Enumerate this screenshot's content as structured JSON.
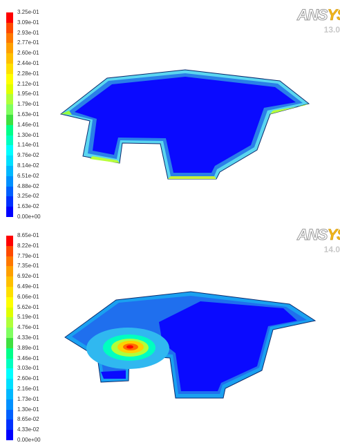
{
  "plots": [
    {
      "legend_labels": [
        "3.25e-01",
        "3.09e-01",
        "2.93e-01",
        "2.77e-01",
        "2.60e-01",
        "2.44e-01",
        "2.28e-01",
        "2.12e-01",
        "1.95e-01",
        "1.79e-01",
        "1.63e-01",
        "1.46e-01",
        "1.30e-01",
        "1.14e-01",
        "9.76e-02",
        "8.14e-02",
        "6.51e-02",
        "4.88e-02",
        "3.25e-02",
        "1.63e-02",
        "0.00e+00"
      ],
      "logo": {
        "brand_left": "ANS",
        "brand_right": "YS",
        "version": "13.0"
      }
    },
    {
      "legend_labels": [
        "8.65e-01",
        "8.22e-01",
        "7.79e-01",
        "7.35e-01",
        "6.92e-01",
        "6.49e-01",
        "6.06e-01",
        "5.62e-01",
        "5.19e-01",
        "4.76e-01",
        "4.33e-01",
        "3.89e-01",
        "3.46e-01",
        "3.03e-01",
        "2.60e-01",
        "2.16e-01",
        "1.73e-01",
        "1.30e-01",
        "8.65e-02",
        "4.33e-02",
        "0.00e+00"
      ],
      "logo": {
        "brand_left": "ANS",
        "brand_right": "YS",
        "version": "14.0"
      }
    }
  ],
  "colormap": [
    "#ff0000",
    "#ff4a00",
    "#ff7800",
    "#ffa000",
    "#ffc000",
    "#ffe000",
    "#ffff00",
    "#e0ff00",
    "#b0ff3a",
    "#80ff60",
    "#40e040",
    "#00ff8a",
    "#00ffc0",
    "#00ffff",
    "#00e0ff",
    "#00b8ff",
    "#0090ff",
    "#0060ff",
    "#0030ff",
    "#0000ff"
  ]
}
